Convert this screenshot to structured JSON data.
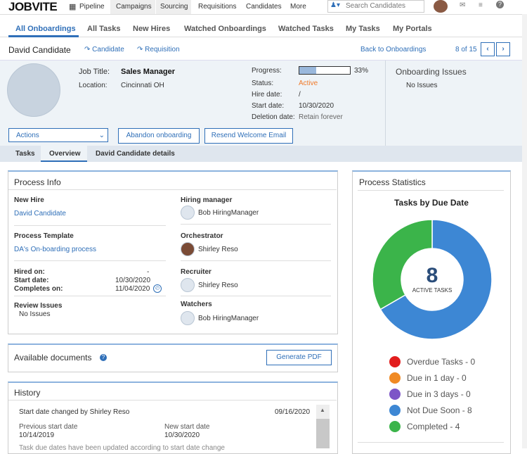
{
  "nav": {
    "logo": "JOBVITE",
    "menu": [
      "Pipeline",
      "Campaigns",
      "Sourcing",
      "Requisitions",
      "Candidates",
      "More"
    ],
    "search_placeholder": "Search Candidates"
  },
  "tabs": [
    "All Onboardings",
    "All Tasks",
    "New Hires",
    "Watched Onboardings",
    "Watched Tasks",
    "My Tasks",
    "My Portals"
  ],
  "breadcrumb": {
    "name": "David Candidate",
    "links": [
      "Candidate",
      "Requisition"
    ],
    "back": "Back to Onboardings",
    "pager": "8 of 15"
  },
  "profile": {
    "job_title_label": "Job Title:",
    "job_title": "Sales Manager",
    "location_label": "Location:",
    "location": "Cincinnati OH",
    "progress": {
      "label": "Progress:",
      "value": 33,
      "value_label": "33%"
    },
    "fields": [
      [
        "Status:",
        "Active"
      ],
      [
        "Hire date:",
        "/"
      ],
      [
        "Start date:",
        "10/30/2020"
      ],
      [
        "Deletion date:",
        "Retain forever"
      ]
    ]
  },
  "issues": {
    "title": "Onboarding Issues",
    "text": "No Issues"
  },
  "actions": {
    "select": "Actions",
    "buttons": [
      "Abandon onboarding",
      "Resend Welcome Email"
    ]
  },
  "subtabs": [
    "Tasks",
    "Overview",
    "David Candidate details"
  ],
  "process_info": {
    "title": "Process Info",
    "new_hire": {
      "label": "New Hire",
      "value": "David Candidate"
    },
    "template": {
      "label": "Process Template",
      "value": "DA's On-boarding process"
    },
    "dates": [
      [
        "Hired on:",
        "-"
      ],
      [
        "Start date:",
        "10/30/2020"
      ],
      [
        "Completes on:",
        "11/04/2020"
      ]
    ],
    "review": {
      "label": "Review Issues",
      "value": "No Issues"
    },
    "people": [
      {
        "label": "Hiring manager",
        "person": "Bob HiringManager"
      },
      {
        "label": "Orchestrator",
        "person": "Shirley Reso"
      },
      {
        "label": "Recruiter",
        "person": "Shirley Reso"
      },
      {
        "label": "Watchers",
        "person": "Bob HiringManager"
      }
    ]
  },
  "documents": {
    "title": "Available documents",
    "button": "Generate PDF"
  },
  "history": {
    "title": "History",
    "entries": [
      {
        "text": "Start date changed by Shirley Reso",
        "date": "09/16/2020",
        "prev_label": "Previous start date",
        "prev": "10/14/2019",
        "new_label": "New start date",
        "new": "10/30/2020"
      }
    ],
    "more": "Task due dates have been updated according to start date change"
  },
  "process_statistics": {
    "title": "Process Statistics",
    "chart": {
      "type": "donut",
      "title": "Tasks by Due Date",
      "center_value": 8,
      "center_label": "ACTIVE TASKS",
      "values": [
        0,
        0,
        0,
        8,
        4
      ],
      "value_labels": [
        "Overdue Tasks - 0",
        "Due in 1 day - 0",
        "Due in 3 days - 0",
        "Not Due Soon - 8",
        "Completed - 4"
      ],
      "colors": [
        "#e21d1d",
        "#f08a24",
        "#7d55c7",
        "#3d87d4",
        "#3bb44a"
      ]
    }
  }
}
